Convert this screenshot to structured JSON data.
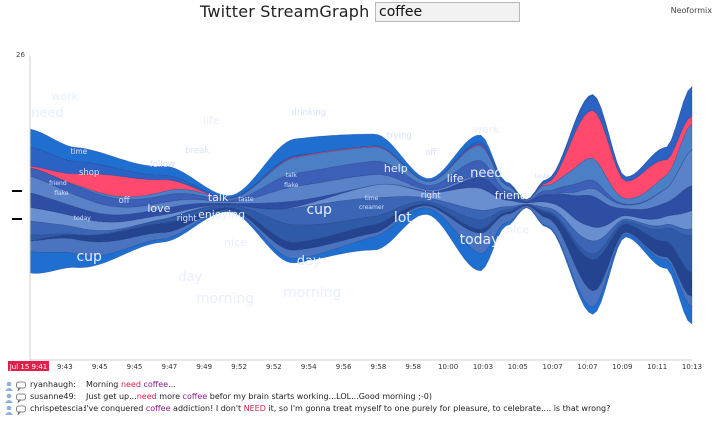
{
  "header": {
    "title": "Twitter StreamGraph for",
    "search_value": "coffee",
    "brand": "Neoformix"
  },
  "chart_data": {
    "type": "area",
    "y_max_label": "26",
    "x_ticks": [
      "Jul 15 9:41",
      "9:43",
      "9:45",
      "9:45",
      "9:47",
      "9:49",
      "9:52",
      "9:52",
      "9:54",
      "9:56",
      "9:58",
      "9:58",
      "10:00",
      "10:03",
      "10:05",
      "10:07",
      "10:07",
      "10:09",
      "10:11",
      "10:13"
    ],
    "highlight_tick": 0,
    "colors": {
      "highlight": "#ff4a6e",
      "series": [
        "#1f6fd1",
        "#2b63c4",
        "#2f70c9",
        "#4b80c6",
        "#3c5fb7",
        "#5a82c9",
        "#2d4ea3",
        "#6a8fd0",
        "#3a66b5",
        "#2e5aa8",
        "#25448f",
        "#4a74bf"
      ],
      "highlight_tick_bg": "#e0204a"
    },
    "words": [
      {
        "text": "work",
        "x": 1,
        "y": 101
      },
      {
        "text": "need",
        "x": 0.5,
        "y": 84
      },
      {
        "text": "time",
        "x": 1.4,
        "y": 47
      },
      {
        "text": "shop",
        "x": 1.7,
        "y": 26
      },
      {
        "text": "friend",
        "x": 0.8,
        "y": 16
      },
      {
        "text": "flake",
        "x": 0.9,
        "y": 6
      },
      {
        "text": "today",
        "x": 1.5,
        "y": -19
      },
      {
        "text": "cup",
        "x": 1.7,
        "y": -60
      },
      {
        "text": "off",
        "x": 2.7,
        "y": -2
      },
      {
        "text": "follow",
        "x": 3.8,
        "y": 34
      },
      {
        "text": "love",
        "x": 3.7,
        "y": -11
      },
      {
        "text": "right",
        "x": 4.5,
        "y": -20
      },
      {
        "text": "day",
        "x": 4.6,
        "y": -80
      },
      {
        "text": "break",
        "x": 4.8,
        "y": 48
      },
      {
        "text": "life",
        "x": 5.2,
        "y": 77
      },
      {
        "text": "talk",
        "x": 5.4,
        "y": 0
      },
      {
        "text": "enjoying",
        "x": 5.5,
        "y": -17
      },
      {
        "text": "taste",
        "x": 6.2,
        "y": 0
      },
      {
        "text": "nice",
        "x": 5.9,
        "y": -45
      },
      {
        "text": "morning",
        "x": 5.6,
        "y": -102
      },
      {
        "text": "drinking",
        "x": 8,
        "y": 86
      },
      {
        "text": "talk",
        "x": 7.5,
        "y": 24
      },
      {
        "text": "flake",
        "x": 7.5,
        "y": 14
      },
      {
        "text": "cup",
        "x": 8.3,
        "y": -13
      },
      {
        "text": "day",
        "x": 8,
        "y": -64
      },
      {
        "text": "morning",
        "x": 8.1,
        "y": -96
      },
      {
        "text": "time",
        "x": 9.8,
        "y": 1
      },
      {
        "text": "creamer",
        "x": 9.8,
        "y": -8
      },
      {
        "text": "trying",
        "x": 10.6,
        "y": 63
      },
      {
        "text": "help",
        "x": 10.5,
        "y": 29
      },
      {
        "text": "lot",
        "x": 10.7,
        "y": -21
      },
      {
        "text": "off",
        "x": 11.5,
        "y": 46
      },
      {
        "text": "right",
        "x": 11.5,
        "y": 3
      },
      {
        "text": "life",
        "x": 12.2,
        "y": 19
      },
      {
        "text": "work",
        "x": 13.1,
        "y": 68
      },
      {
        "text": "need",
        "x": 13.1,
        "y": 24
      },
      {
        "text": "today",
        "x": 12.9,
        "y": -43
      },
      {
        "text": "friend",
        "x": 13.8,
        "y": 2
      },
      {
        "text": "nice",
        "x": 14,
        "y": -32
      },
      {
        "text": "taste",
        "x": 14.7,
        "y": 23
      }
    ]
  },
  "tweets": [
    {
      "user": "ryanhaugh:",
      "parts": [
        {
          "t": "Morning ",
          "c": ""
        },
        {
          "t": "need",
          "c": "need"
        },
        {
          "t": " ",
          "c": ""
        },
        {
          "t": "coffee",
          "c": "coffee"
        },
        {
          "t": "...",
          "c": ""
        }
      ]
    },
    {
      "user": "susanne49:",
      "parts": [
        {
          "t": "Just get up...",
          "c": ""
        },
        {
          "t": "need",
          "c": "need"
        },
        {
          "t": " more ",
          "c": ""
        },
        {
          "t": "coffee",
          "c": "coffee"
        },
        {
          "t": " befor my brain starts working...LOL...Good morning ;-0)",
          "c": ""
        }
      ]
    },
    {
      "user": "chrispetescia:",
      "parts": [
        {
          "t": "I've conquered ",
          "c": ""
        },
        {
          "t": "coffee",
          "c": "coffee"
        },
        {
          "t": " addiction! I don't ",
          "c": ""
        },
        {
          "t": "NEED",
          "c": "need"
        },
        {
          "t": " it, so I'm gonna treat myself to one purely for pleasure, to celebrate.... is that wrong?",
          "c": ""
        }
      ]
    }
  ]
}
